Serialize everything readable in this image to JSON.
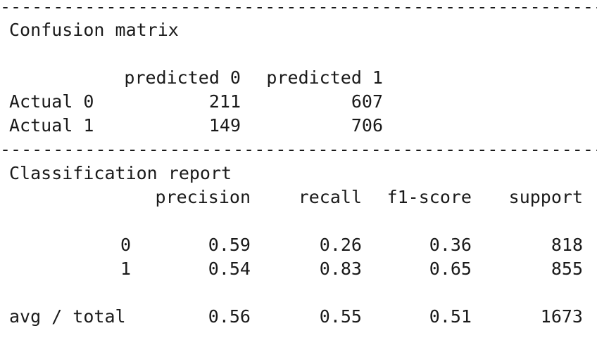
{
  "separator": "------------------------------------------------------------------------",
  "confusion": {
    "heading": "Confusion matrix",
    "col_labels": [
      "predicted 0",
      "predicted 1"
    ],
    "rows": [
      {
        "label": "Actual 0",
        "values": [
          "211",
          "607"
        ]
      },
      {
        "label": "Actual 1",
        "values": [
          "149",
          "706"
        ]
      }
    ]
  },
  "report": {
    "heading": "Classification report",
    "columns": [
      "precision",
      "recall",
      "f1-score",
      "support"
    ],
    "rows": [
      {
        "label": "0",
        "values": [
          "0.59",
          "0.26",
          "0.36",
          "818"
        ]
      },
      {
        "label": "1",
        "values": [
          "0.54",
          "0.83",
          "0.65",
          "855"
        ]
      }
    ],
    "total": {
      "label": "avg / total",
      "values": [
        "0.56",
        "0.55",
        "0.51",
        "1673"
      ]
    }
  }
}
